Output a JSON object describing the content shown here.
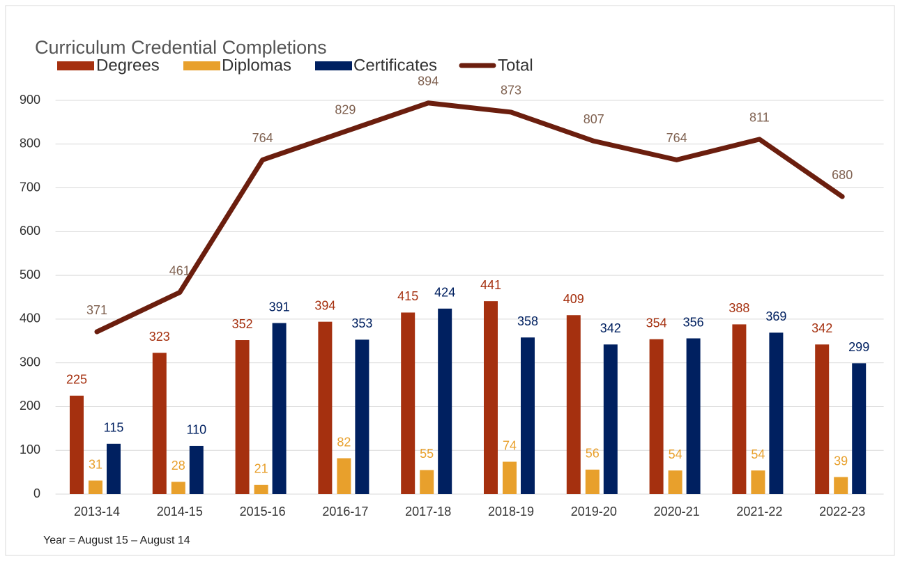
{
  "chart_data": {
    "type": "bar",
    "title": "Curriculum Credential Completions",
    "footnote": "Year = August 15 – August 14",
    "categories": [
      "2013-14",
      "2014-15",
      "2015-16",
      "2016-17",
      "2017-18",
      "2018-19",
      "2019-20",
      "2020-21",
      "2021-22",
      "2022-23"
    ],
    "series": [
      {
        "name": "Degrees",
        "type": "bar",
        "color": "#a5300f",
        "values": [
          225,
          323,
          352,
          394,
          415,
          441,
          409,
          354,
          388,
          342
        ]
      },
      {
        "name": "Diplomas",
        "type": "bar",
        "color": "#e8a02c",
        "values": [
          31,
          28,
          21,
          82,
          55,
          74,
          56,
          54,
          54,
          39
        ]
      },
      {
        "name": "Certificates",
        "type": "bar",
        "color": "#002060",
        "values": [
          115,
          110,
          391,
          353,
          424,
          358,
          342,
          356,
          369,
          299
        ]
      },
      {
        "name": "Total",
        "type": "line",
        "color": "#6b1e0e",
        "values": [
          371,
          461,
          764,
          829,
          894,
          873,
          807,
          764,
          811,
          680
        ]
      }
    ],
    "ylim": [
      0,
      900
    ],
    "yticks": [
      0,
      100,
      200,
      300,
      400,
      500,
      600,
      700,
      800,
      900
    ],
    "grid": true,
    "legend": "top"
  }
}
